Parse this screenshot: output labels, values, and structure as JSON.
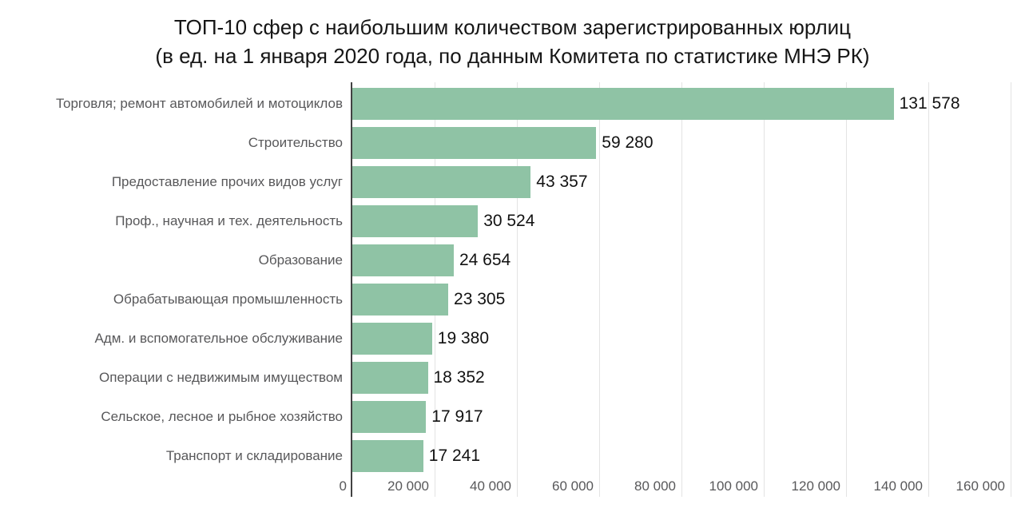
{
  "title": {
    "line1": "ТОП-10 сфер с наибольшим количеством зарегистрированных юрлиц",
    "line2": "(в ед. на 1 января 2020 года, по данным Комитета по статистике МНЭ РК)"
  },
  "chart_data": {
    "type": "bar",
    "orientation": "horizontal",
    "title": "ТОП-10 сфер с наибольшим количеством зарегистрированных юрлиц",
    "subtitle": "(в ед. на 1 января 2020 года, по данным Комитета по статистике МНЭ РК)",
    "categories": [
      "Торговля; ремонт автомобилей и мотоциклов",
      "Строительство",
      "Предоставление прочих видов услуг",
      "Проф., научная и тех. деятельность",
      "Образование",
      "Обрабатывающая промышленность",
      "Адм. и вспомогательное обслуживание",
      "Операции с недвижимым имуществом",
      "Сельское, лесное и рыбное хозяйство",
      "Транспорт и складирование"
    ],
    "values": [
      131578,
      59280,
      43357,
      30524,
      24654,
      23305,
      19380,
      18352,
      17917,
      17241
    ],
    "value_labels": [
      "131 578",
      "59 280",
      "43 357",
      "30 524",
      "24 654",
      "23 305",
      "19 380",
      "18 352",
      "17 917",
      "17 241"
    ],
    "x_ticks": [
      "0",
      "20 000",
      "40 000",
      "60 000",
      "80 000",
      "100 000",
      "120 000",
      "140 000",
      "160 000"
    ],
    "xlim": [
      0,
      160000
    ],
    "xlabel": "",
    "ylabel": "",
    "grid": true,
    "legend": "none",
    "bar_color": "#8fc3a5",
    "gridline_color": "#e3e3e3",
    "axis_color": "#424242",
    "category_color": "#58585a",
    "tick_color": "#58585a",
    "value_color": "#121212",
    "title_color": "#161616"
  }
}
